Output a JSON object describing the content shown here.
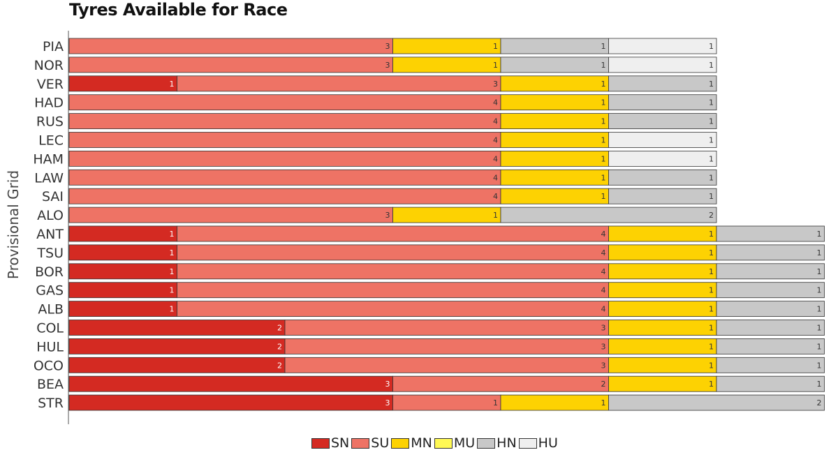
{
  "chart_data": {
    "type": "bar",
    "orientation": "horizontal",
    "stacked": true,
    "title": "Tyres Available for Race",
    "ylabel": "Provisional Grid",
    "xlabel": "",
    "xlim": [
      0,
      7
    ],
    "grid": false,
    "legend_position": "bottom-center",
    "categories": [
      "PIA",
      "NOR",
      "VER",
      "HAD",
      "RUS",
      "LEC",
      "HAM",
      "LAW",
      "SAI",
      "ALO",
      "ANT",
      "TSU",
      "BOR",
      "GAS",
      "ALB",
      "COL",
      "HUL",
      "OCO",
      "BEA",
      "STR"
    ],
    "series": [
      {
        "name": "SN",
        "color": "#d42a22",
        "values": [
          0,
          0,
          1,
          0,
          0,
          0,
          0,
          0,
          0,
          0,
          1,
          1,
          1,
          1,
          1,
          2,
          2,
          2,
          3,
          3
        ]
      },
      {
        "name": "SU",
        "color": "#ee7365",
        "values": [
          3,
          3,
          3,
          4,
          4,
          4,
          4,
          4,
          4,
          3,
          4,
          4,
          4,
          4,
          4,
          3,
          3,
          3,
          2,
          1
        ]
      },
      {
        "name": "MN",
        "color": "#fdd202",
        "values": [
          1,
          1,
          1,
          1,
          1,
          1,
          1,
          1,
          1,
          1,
          1,
          1,
          1,
          1,
          1,
          1,
          1,
          1,
          1,
          1
        ]
      },
      {
        "name": "MU",
        "color": "#fff955",
        "values": [
          0,
          0,
          0,
          0,
          0,
          0,
          0,
          0,
          0,
          0,
          0,
          0,
          0,
          0,
          0,
          0,
          0,
          0,
          0,
          0
        ]
      },
      {
        "name": "HN",
        "color": "#c8c8c8",
        "values": [
          1,
          1,
          1,
          1,
          1,
          0,
          0,
          1,
          1,
          2,
          1,
          1,
          1,
          1,
          1,
          1,
          1,
          1,
          1,
          2
        ]
      },
      {
        "name": "HU",
        "color": "#efefef",
        "values": [
          1,
          1,
          0,
          0,
          0,
          1,
          1,
          0,
          0,
          0,
          0,
          0,
          0,
          0,
          0,
          0,
          0,
          0,
          0,
          0
        ]
      }
    ]
  }
}
